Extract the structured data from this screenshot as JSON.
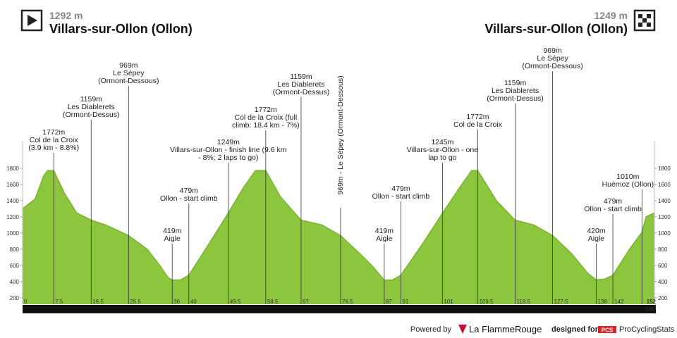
{
  "header": {
    "start_elevation": "1292 m",
    "start_name": "Villars-sur-Ollon (Ollon)",
    "finish_elevation": "1249 m",
    "finish_name": "Villars-sur-Ollon (Ollon)"
  },
  "chart_data": {
    "type": "area",
    "color": "#8cc63f",
    "x": [
      0,
      3,
      5,
      6,
      7.5,
      10,
      13,
      16.5,
      20,
      25.5,
      30,
      33,
      35,
      36,
      38,
      40,
      44,
      49.5,
      53,
      56,
      58.5,
      62,
      67,
      72,
      76.5,
      80,
      84,
      87,
      89,
      91,
      96,
      101,
      105,
      108,
      109.5,
      114,
      118.5,
      123,
      127.5,
      132,
      136,
      138,
      140,
      142,
      146,
      149,
      150,
      152
    ],
    "values": [
      1300,
      1420,
      1700,
      1772,
      1772,
      1500,
      1250,
      1159,
      1100,
      969,
      800,
      600,
      450,
      419,
      420,
      479,
      800,
      1249,
      1550,
      1772,
      1772,
      1450,
      1159,
      1100,
      969,
      800,
      600,
      419,
      420,
      479,
      850,
      1245,
      1550,
      1772,
      1772,
      1400,
      1159,
      1100,
      969,
      750,
      500,
      420,
      430,
      479,
      800,
      1010,
      1200,
      1249
    ],
    "xlim": [
      0,
      152
    ],
    "ylim": [
      120,
      1800
    ],
    "xticks": [
      0,
      7.5,
      16.5,
      25.5,
      36,
      40,
      49.5,
      58.5,
      67,
      76.5,
      87,
      91,
      101,
      109.5,
      118.5,
      127.5,
      138,
      142,
      152
    ],
    "yticks": [
      200,
      400,
      600,
      800,
      1000,
      1200,
      1400,
      1600,
      1800
    ],
    "end_marker": "149",
    "annotations": [
      {
        "x": 7.5,
        "lines": [
          "1772m",
          "Col de la Croix",
          "(3.9 km - 8.8%)"
        ]
      },
      {
        "x": 16.5,
        "lines": [
          "1159m",
          "Les Diablerets",
          "(Ormont-Dessus)"
        ]
      },
      {
        "x": 25.5,
        "lines": [
          "969m",
          "Le Sépey",
          "(Ormont-Dessous)"
        ]
      },
      {
        "x": 36,
        "lines": [
          "419m",
          "Aigle"
        ]
      },
      {
        "x": 40,
        "lines": [
          "479m",
          "Ollon - start climb"
        ]
      },
      {
        "x": 49.5,
        "lines": [
          "1249m",
          "Villars-sur-Ollon - finish line (9.6 km",
          "- 8%; 2 laps to go)"
        ]
      },
      {
        "x": 58.5,
        "lines": [
          "1772m",
          "Col de la Croix (full",
          "climb: 18.4 km - 7%)"
        ]
      },
      {
        "x": 67,
        "lines": [
          "1159m",
          "Les Diablerets",
          "(Ormont-Dessus)"
        ]
      },
      {
        "x": 76.5,
        "lines": [
          "969m - Le Sépey (Ormont-Dessous)"
        ],
        "rotated": true
      },
      {
        "x": 87,
        "lines": [
          "419m",
          "Aigle"
        ]
      },
      {
        "x": 91,
        "lines": [
          "479m",
          "Ollon - start climb"
        ]
      },
      {
        "x": 101,
        "lines": [
          "1245m",
          "Villars-sur-Ollon - one",
          "lap to go"
        ]
      },
      {
        "x": 109.5,
        "lines": [
          "1772m",
          "Col de la Croix"
        ]
      },
      {
        "x": 118.5,
        "lines": [
          "1159m",
          "Les Diablerets",
          "(Ormont-Dessus)"
        ]
      },
      {
        "x": 127.5,
        "lines": [
          "969m",
          "Le Sépey",
          "(Ormont-Dessous)"
        ]
      },
      {
        "x": 138,
        "lines": [
          "420m",
          "Aigle"
        ]
      },
      {
        "x": 142,
        "lines": [
          "479m",
          "Ollon - start climb"
        ]
      },
      {
        "x": 149,
        "lines": [
          "1010m",
          "Huémoz (Ollon)"
        ]
      }
    ]
  },
  "footer": {
    "powered_by": "Powered by",
    "brand": "La FlammeRouge",
    "designed_for": "designed for",
    "pcs_logo": "PCS",
    "pcs_name": "ProCyclingStats"
  }
}
